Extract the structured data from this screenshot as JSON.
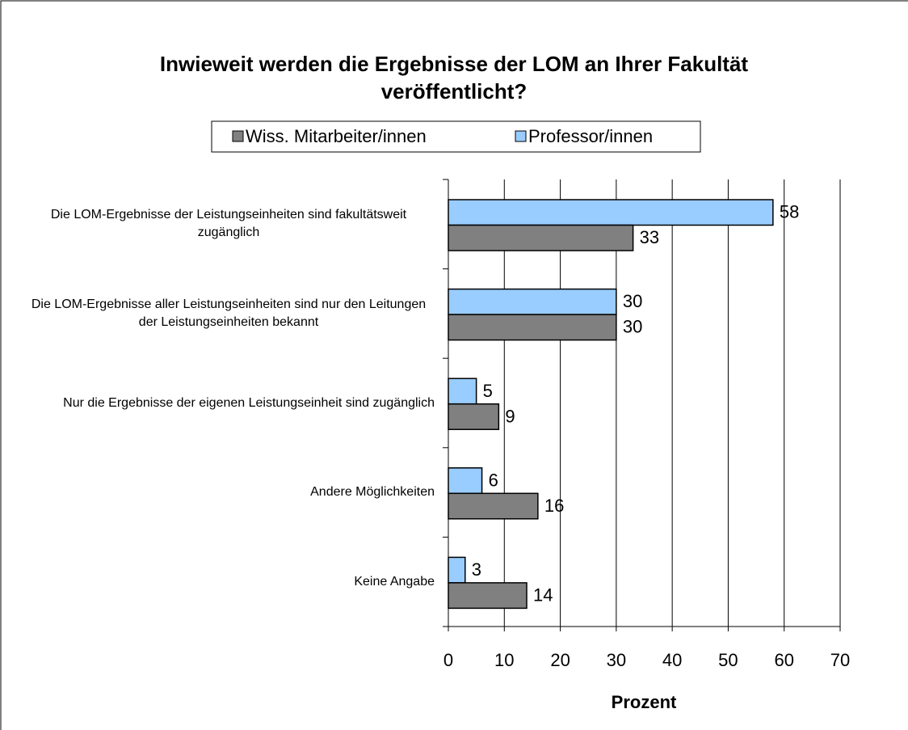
{
  "chart_data": {
    "type": "bar",
    "orientation": "horizontal",
    "title": "Inwieweit werden die Ergebnisse der LOM an Ihrer Fakultät veröffentlicht?",
    "categories": [
      "Die LOM-Ergebnisse der Leistungseinheiten sind fakultätsweit zugänglich",
      "Die LOM-Ergebnisse aller Leistungseinheiten sind nur den Leitungen der Leistungseinheiten bekannt",
      "Nur die Ergebnisse der eigenen Leistungseinheit sind zugänglich",
      "Andere Möglichkeiten",
      "Keine Angabe"
    ],
    "series": [
      {
        "name": "Wiss. Mitarbeiter/innen",
        "color": "#808080",
        "values": [
          33,
          30,
          9,
          16,
          14
        ]
      },
      {
        "name": "Professor/innen",
        "color": "#99ccff",
        "values": [
          58,
          30,
          5,
          6,
          3
        ]
      }
    ],
    "xlabel": "Prozent",
    "xlim": [
      0,
      70
    ],
    "xticks": [
      0,
      10,
      20,
      30,
      40,
      50,
      60,
      70
    ],
    "grid": true
  }
}
